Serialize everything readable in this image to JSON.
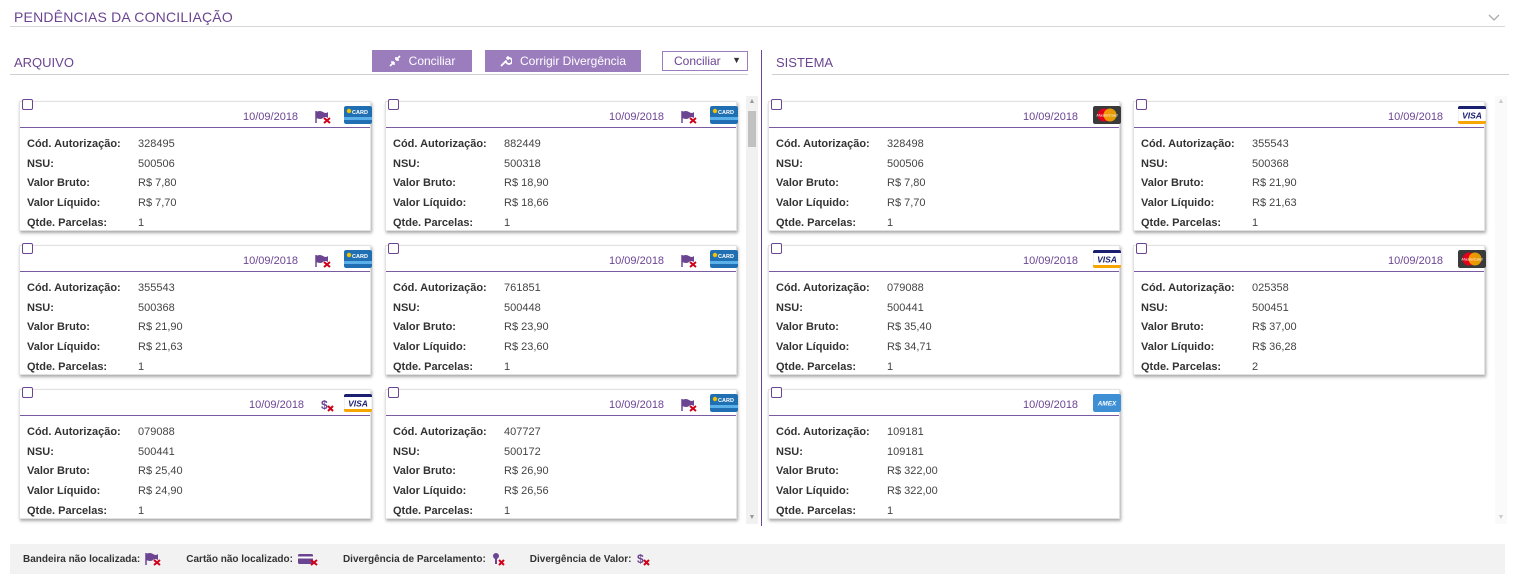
{
  "header": {
    "title": "PENDÊNCIAS DA CONCILIAÇÃO"
  },
  "arquivo": {
    "title": "ARQUIVO",
    "buttons": {
      "conciliar": "Conciliar",
      "corrigir": "Corrigir Divergência"
    },
    "select": {
      "value": "Conciliar"
    },
    "cards": [
      {
        "date": "10/09/2018",
        "flag": "bandeira-nao-localizada",
        "brand": "card",
        "autorizacao": "328495",
        "nsu": "500506",
        "bruto": "R$ 7,80",
        "liquido": "R$ 7,70",
        "parcelas": "1"
      },
      {
        "date": "10/09/2018",
        "flag": "bandeira-nao-localizada",
        "brand": "card",
        "autorizacao": "882449",
        "nsu": "500318",
        "bruto": "R$ 18,90",
        "liquido": "R$ 18,66",
        "parcelas": "1"
      },
      {
        "date": "10/09/2018",
        "flag": "bandeira-nao-localizada",
        "brand": "card",
        "autorizacao": "355543",
        "nsu": "500368",
        "bruto": "R$ 21,90",
        "liquido": "R$ 21,63",
        "parcelas": "1"
      },
      {
        "date": "10/09/2018",
        "flag": "bandeira-nao-localizada",
        "brand": "card",
        "autorizacao": "761851",
        "nsu": "500448",
        "bruto": "R$ 23,90",
        "liquido": "R$ 23,60",
        "parcelas": "1"
      },
      {
        "date": "10/09/2018",
        "flag": "divergencia-valor",
        "brand": "visa",
        "autorizacao": "079088",
        "nsu": "500441",
        "bruto": "R$ 25,40",
        "liquido": "R$ 24,90",
        "parcelas": "1"
      },
      {
        "date": "10/09/2018",
        "flag": "bandeira-nao-localizada",
        "brand": "card",
        "autorizacao": "407727",
        "nsu": "500172",
        "bruto": "R$ 26,90",
        "liquido": "R$ 26,56",
        "parcelas": "1"
      }
    ]
  },
  "sistema": {
    "title": "SISTEMA",
    "cards": [
      {
        "date": "10/09/2018",
        "brand": "mastercard",
        "autorizacao": "328498",
        "nsu": "500506",
        "bruto": "R$ 7,80",
        "liquido": "R$ 7,70",
        "parcelas": "1"
      },
      {
        "date": "10/09/2018",
        "brand": "visa",
        "autorizacao": "355543",
        "nsu": "500368",
        "bruto": "R$ 21,90",
        "liquido": "R$ 21,63",
        "parcelas": "1"
      },
      {
        "date": "10/09/2018",
        "brand": "visa",
        "autorizacao": "079088",
        "nsu": "500441",
        "bruto": "R$ 35,40",
        "liquido": "R$ 34,71",
        "parcelas": "1"
      },
      {
        "date": "10/09/2018",
        "brand": "mastercard",
        "autorizacao": "025358",
        "nsu": "500451",
        "bruto": "R$ 37,00",
        "liquido": "R$ 36,28",
        "parcelas": "2"
      },
      {
        "date": "10/09/2018",
        "brand": "amex",
        "autorizacao": "109181",
        "nsu": "109181",
        "bruto": "R$ 322,00",
        "liquido": "R$ 322,00",
        "parcelas": "1"
      }
    ]
  },
  "labels": {
    "autorizacao": "Cód. Autorização:",
    "nsu": "NSU:",
    "bruto": "Valor Bruto:",
    "liquido": "Valor Líquido:",
    "parcelas": "Qtde. Parcelas:"
  },
  "brand_text": {
    "card": "CARD",
    "visa": "VISA",
    "mastercard": "MasterCard",
    "amex": "AMEX"
  },
  "legend": [
    {
      "label": "Bandeira não localizada:",
      "icon": "bandeira-nao-localizada"
    },
    {
      "label": "Cartão não localizado:",
      "icon": "cartao-nao-localizado"
    },
    {
      "label": "Divergência de Parcelamento:",
      "icon": "divergencia-parcelamento"
    },
    {
      "label": "Divergência de Valor:",
      "icon": "divergencia-valor"
    }
  ],
  "colors": {
    "accent": "#6b4591",
    "button": "#9b7cbd",
    "alert": "#d0021b"
  }
}
